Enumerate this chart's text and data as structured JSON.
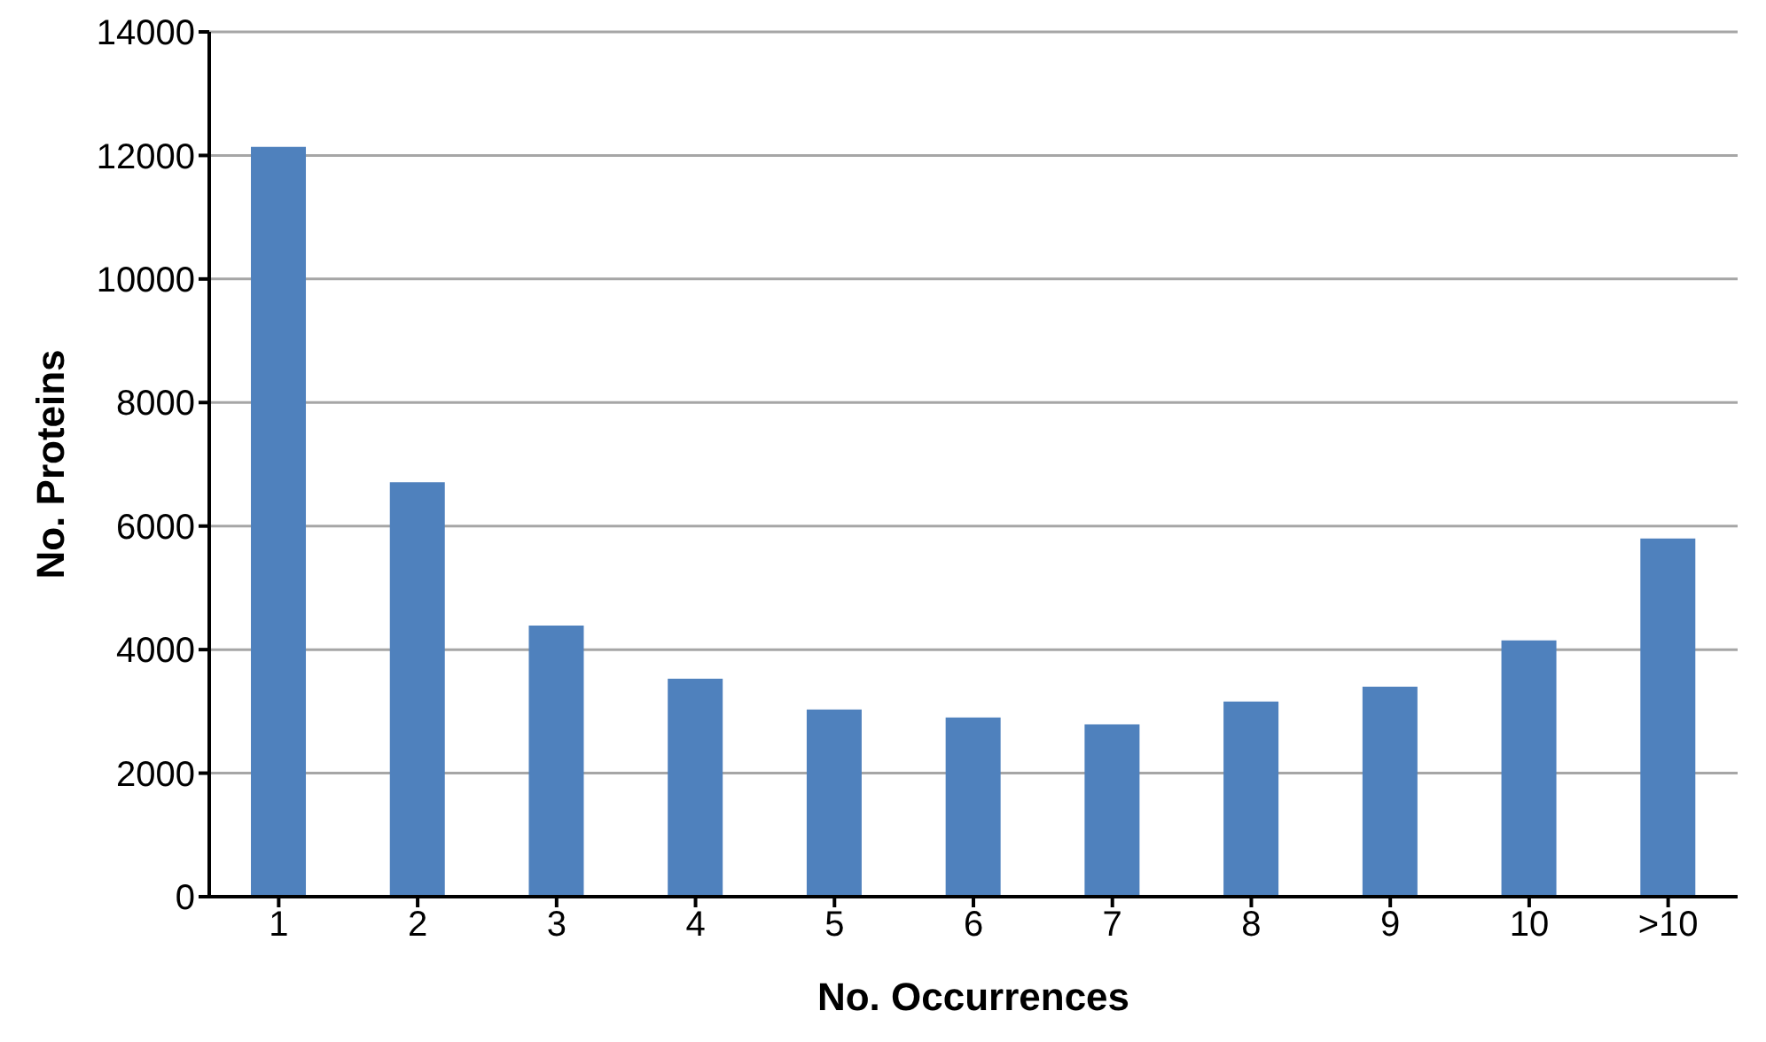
{
  "chart_data": {
    "type": "bar",
    "xlabel": "No. Occurrences",
    "ylabel": "No. Proteins",
    "categories": [
      "1",
      "2",
      "3",
      "4",
      "5",
      "6",
      "7",
      "8",
      "9",
      "10",
      ">10"
    ],
    "values": [
      12140,
      6710,
      4390,
      3530,
      3030,
      2900,
      2790,
      3160,
      3400,
      4150,
      5800
    ],
    "color": "#4f81bd",
    "ylim": [
      0,
      14000
    ],
    "yticks": [
      0,
      2000,
      4000,
      6000,
      8000,
      10000,
      12000,
      14000
    ],
    "grid": "y",
    "legend": false
  }
}
